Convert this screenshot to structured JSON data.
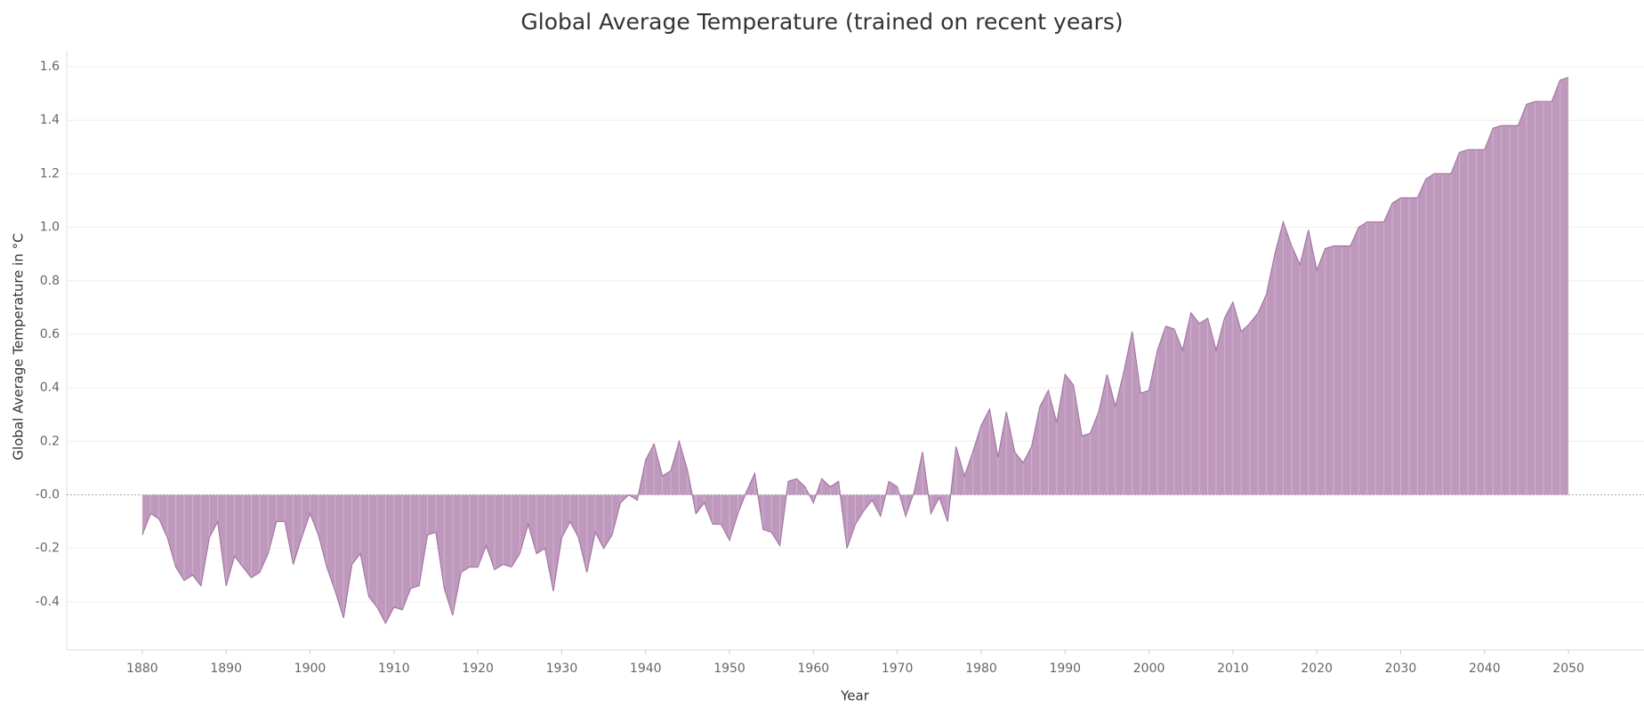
{
  "chart_data": {
    "type": "area",
    "title": "Global Average Temperature (trained on recent years)",
    "x_label": "Year",
    "y_label": "Global Average Temperature in °C",
    "color": "#bf99bd",
    "line_color": "#a577a3",
    "grid": true,
    "xlim": [
      1871,
      2059
    ],
    "ylim": [
      -0.58,
      1.66
    ],
    "xticks": [
      1880,
      1890,
      1900,
      1910,
      1920,
      1930,
      1940,
      1950,
      1960,
      1970,
      1980,
      1990,
      2000,
      2010,
      2020,
      2030,
      2040,
      2050
    ],
    "yticks": [
      1.6,
      1.4,
      1.2,
      {
        "value": 1,
        "label": "1.0"
      },
      0.8,
      0.6,
      0.4,
      0.2,
      {
        "value": 0,
        "label": "-0.0"
      },
      -0.2,
      -0.4
    ],
    "x": [
      1880,
      1881,
      1882,
      1883,
      1884,
      1885,
      1886,
      1887,
      1888,
      1889,
      1890,
      1891,
      1892,
      1893,
      1894,
      1895,
      1896,
      1897,
      1898,
      1899,
      1900,
      1901,
      1902,
      1903,
      1904,
      1905,
      1906,
      1907,
      1908,
      1909,
      1910,
      1911,
      1912,
      1913,
      1914,
      1915,
      1916,
      1917,
      1918,
      1919,
      1920,
      1921,
      1922,
      1923,
      1924,
      1925,
      1926,
      1927,
      1928,
      1929,
      1930,
      1931,
      1932,
      1933,
      1934,
      1935,
      1936,
      1937,
      1938,
      1939,
      1940,
      1941,
      1942,
      1943,
      1944,
      1945,
      1946,
      1947,
      1948,
      1949,
      1950,
      1951,
      1952,
      1953,
      1954,
      1955,
      1956,
      1957,
      1958,
      1959,
      1960,
      1961,
      1962,
      1963,
      1964,
      1965,
      1966,
      1967,
      1968,
      1969,
      1970,
      1971,
      1972,
      1973,
      1974,
      1975,
      1976,
      1977,
      1978,
      1979,
      1980,
      1981,
      1982,
      1983,
      1984,
      1985,
      1986,
      1987,
      1988,
      1989,
      1990,
      1991,
      1992,
      1993,
      1994,
      1995,
      1996,
      1997,
      1998,
      1999,
      2000,
      2001,
      2002,
      2003,
      2004,
      2005,
      2006,
      2007,
      2008,
      2009,
      2010,
      2011,
      2012,
      2013,
      2014,
      2015,
      2016,
      2017,
      2018,
      2019,
      2020,
      2021,
      2022,
      2023,
      2024,
      2025,
      2026,
      2027,
      2028,
      2029,
      2030,
      2031,
      2032,
      2033,
      2034,
      2035,
      2036,
      2037,
      2038,
      2039,
      2040,
      2041,
      2042,
      2043,
      2044,
      2045,
      2046,
      2047,
      2048,
      2049,
      2050
    ],
    "values": [
      -0.15,
      -0.07,
      -0.09,
      -0.16,
      -0.27,
      -0.32,
      -0.3,
      -0.34,
      -0.16,
      -0.1,
      -0.34,
      -0.23,
      -0.27,
      -0.31,
      -0.29,
      -0.22,
      -0.1,
      -0.1,
      -0.26,
      -0.16,
      -0.07,
      -0.15,
      -0.27,
      -0.36,
      -0.46,
      -0.26,
      -0.22,
      -0.38,
      -0.42,
      -0.48,
      -0.42,
      -0.43,
      -0.35,
      -0.34,
      -0.15,
      -0.14,
      -0.35,
      -0.45,
      -0.29,
      -0.27,
      -0.27,
      -0.19,
      -0.28,
      -0.26,
      -0.27,
      -0.22,
      -0.11,
      -0.22,
      -0.2,
      -0.36,
      -0.16,
      -0.1,
      -0.16,
      -0.29,
      -0.14,
      -0.2,
      -0.15,
      -0.03,
      0.0,
      -0.02,
      0.13,
      0.19,
      0.07,
      0.09,
      0.2,
      0.09,
      -0.07,
      -0.03,
      -0.11,
      -0.11,
      -0.17,
      -0.07,
      0.01,
      0.08,
      -0.13,
      -0.14,
      -0.19,
      0.05,
      0.06,
      0.03,
      -0.03,
      0.06,
      0.03,
      0.05,
      -0.2,
      -0.11,
      -0.06,
      -0.02,
      -0.08,
      0.05,
      0.03,
      -0.08,
      0.01,
      0.16,
      -0.07,
      -0.01,
      -0.1,
      0.18,
      0.07,
      0.16,
      0.26,
      0.32,
      0.14,
      0.31,
      0.16,
      0.12,
      0.18,
      0.33,
      0.39,
      0.27,
      0.45,
      0.41,
      0.22,
      0.23,
      0.31,
      0.45,
      0.33,
      0.46,
      0.61,
      0.38,
      0.39,
      0.54,
      0.63,
      0.62,
      0.54,
      0.68,
      0.64,
      0.66,
      0.54,
      0.66,
      0.72,
      0.61,
      0.64,
      0.68,
      0.75,
      0.9,
      1.02,
      0.93,
      0.86,
      0.99,
      0.84,
      0.92,
      0.93,
      0.93,
      0.93,
      1.0,
      1.02,
      1.02,
      1.02,
      1.09,
      1.11,
      1.11,
      1.11,
      1.18,
      1.2,
      1.2,
      1.2,
      1.28,
      1.29,
      1.29,
      1.29,
      1.37,
      1.38,
      1.38,
      1.38,
      1.46,
      1.47,
      1.47,
      1.47,
      1.55,
      1.56
    ]
  }
}
